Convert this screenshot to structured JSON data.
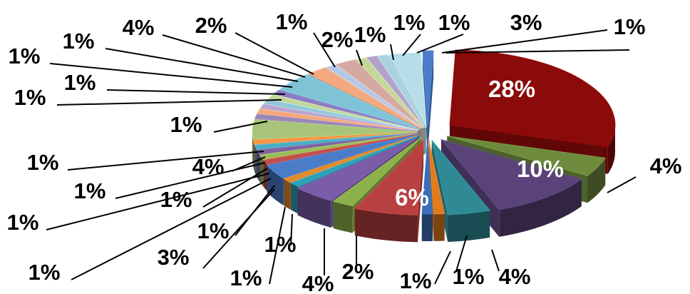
{
  "chart_data": {
    "type": "pie",
    "variant": "3d-exploded",
    "title": "",
    "legend": "none",
    "slices": [
      {
        "label": "28%",
        "value": 28,
        "color": "#8B0A0A",
        "inside": true
      },
      {
        "label": "4%",
        "value": 4,
        "color": "#6E8B3D"
      },
      {
        "label": "10%",
        "value": 10,
        "color": "#5A4378",
        "inside": true
      },
      {
        "label": "4%",
        "value": 4,
        "color": "#2F8A96"
      },
      {
        "label": "1%",
        "value": 1,
        "color": "#E07B1E"
      },
      {
        "label": "1%",
        "value": 1,
        "color": "#3D6DB5"
      },
      {
        "label": "6%",
        "value": 6,
        "color": "#B84040",
        "inside": true
      },
      {
        "label": "2%",
        "value": 2,
        "color": "#8CB04A"
      },
      {
        "label": "4%",
        "value": 4,
        "color": "#7A5CA8"
      },
      {
        "label": "1%",
        "value": 1,
        "color": "#2FA0B5"
      },
      {
        "label": "1%",
        "value": 1,
        "color": "#E08A2E"
      },
      {
        "label": "3%",
        "value": 3,
        "color": "#4A7CC8"
      },
      {
        "label": "1%",
        "value": 1,
        "color": "#C0504D"
      },
      {
        "label": "1%",
        "value": 1,
        "color": "#9BBB59"
      },
      {
        "label": "1%",
        "value": 1,
        "color": "#8064A2"
      },
      {
        "label": "1%",
        "value": 1,
        "color": "#4BACC6"
      },
      {
        "label": "1%",
        "value": 1,
        "color": "#F79646"
      },
      {
        "label": "4%",
        "value": 4,
        "color": "#A8C47A"
      },
      {
        "label": "1%",
        "value": 1,
        "color": "#9A86B8"
      },
      {
        "label": "1%",
        "value": 1,
        "color": "#F4A77A"
      },
      {
        "label": "1%",
        "value": 1,
        "color": "#B9A6CE"
      },
      {
        "label": "1%",
        "value": 1,
        "color": "#93C7D6"
      },
      {
        "label": "1%",
        "value": 1,
        "color": "#C3D69B"
      },
      {
        "label": "1%",
        "value": 1,
        "color": "#8E7CC3"
      },
      {
        "label": "4%",
        "value": 4,
        "color": "#7FC4D6"
      },
      {
        "label": "2%",
        "value": 2,
        "color": "#F4A880"
      },
      {
        "label": "1%",
        "value": 1,
        "color": "#B4C7E7"
      },
      {
        "label": "2%",
        "value": 2,
        "color": "#D6A9A0"
      },
      {
        "label": "1%",
        "value": 1,
        "color": "#C4D79B"
      },
      {
        "label": "1%",
        "value": 1,
        "color": "#B3A2C7"
      },
      {
        "label": "1%",
        "value": 1,
        "color": "#A9D2DE"
      },
      {
        "label": "3%",
        "value": 3,
        "color": "#B7DEE8"
      },
      {
        "label": "1%",
        "value": 1,
        "color": "#4A7CC8"
      }
    ]
  }
}
